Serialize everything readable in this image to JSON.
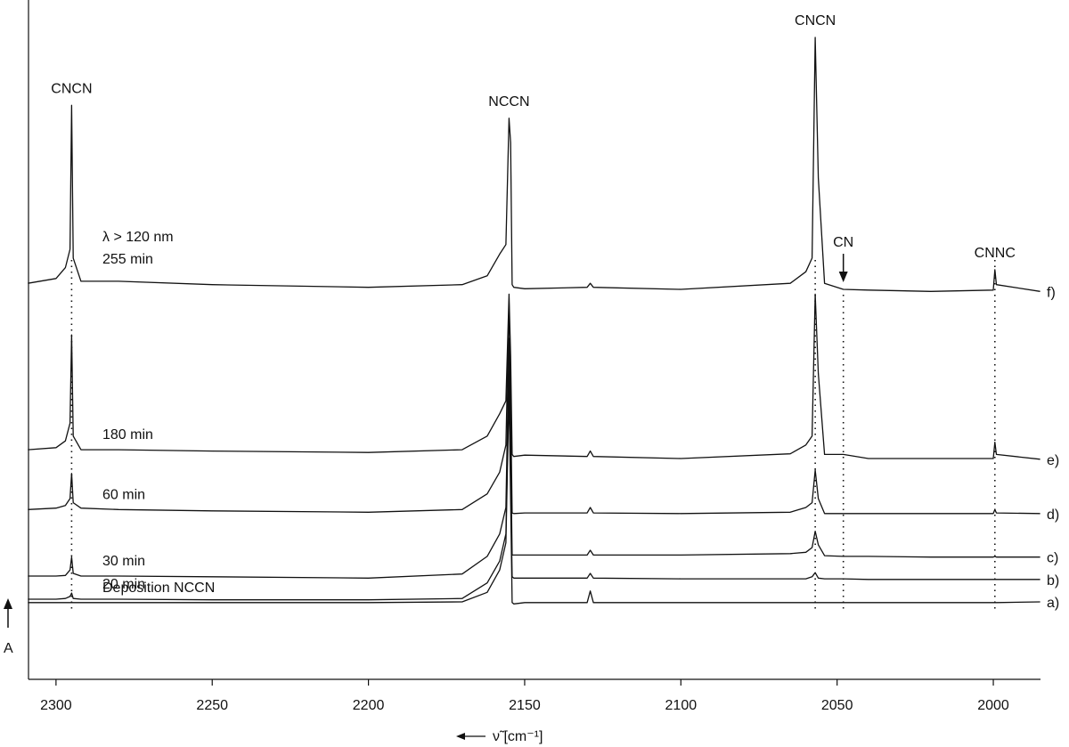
{
  "chart_data": {
    "type": "line",
    "x_label": "ν̃ [cm⁻¹]",
    "y_label": "A",
    "xlim": [
      2308.8,
      1984.9
    ],
    "xticks": [
      2300,
      2250,
      2200,
      2150,
      2100,
      2050,
      2000
    ],
    "ylim": [
      0,
      100
    ],
    "color": "#111111",
    "x": [
      2309,
      2300,
      2297,
      2295.5,
      2295,
      2294.5,
      2292,
      2280,
      2250,
      2200,
      2170,
      2162,
      2158,
      2156,
      2155,
      2154.5,
      2154,
      2153.5,
      2150,
      2130,
      2129,
      2128,
      2100,
      2065,
      2060,
      2058,
      2057,
      2056,
      2054,
      2048,
      2040,
      2020,
      2000,
      1999.5,
      1999,
      1985
    ],
    "series": [
      {
        "name": "a)",
        "labels": [
          "Deposition NCCN"
        ],
        "values": [
          11.3,
          11.3,
          11.3,
          11.3,
          11.3,
          11.3,
          11.3,
          11.3,
          11.3,
          11.3,
          11.4,
          12.8,
          16.1,
          20.1,
          42.5,
          26.6,
          11.3,
          11.1,
          11.3,
          11.3,
          13.0,
          11.3,
          11.3,
          11.3,
          11.3,
          11.3,
          11.3,
          11.3,
          11.3,
          11.3,
          11.3,
          11.3,
          11.3,
          11.3,
          11.3,
          11.4
        ]
      },
      {
        "name": "b)",
        "labels": [
          "20 min"
        ],
        "values": [
          11.8,
          11.8,
          11.9,
          12.2,
          12.7,
          11.9,
          11.8,
          11.8,
          11.7,
          11.7,
          11.9,
          14.2,
          17.4,
          21.4,
          45.0,
          29.2,
          15.1,
          14.9,
          14.9,
          14.9,
          15.6,
          14.9,
          14.8,
          14.8,
          14.8,
          15.1,
          15.7,
          14.9,
          14.8,
          14.8,
          14.7,
          14.7,
          14.7,
          14.7,
          14.7,
          14.7
        ]
      },
      {
        "name": "c)",
        "labels": [
          "30 min"
        ],
        "values": [
          15.2,
          15.2,
          15.3,
          16.1,
          18.0,
          15.6,
          15.2,
          15.2,
          15.1,
          14.9,
          15.5,
          18.1,
          21.4,
          25.3,
          50.2,
          34.5,
          18.3,
          18.3,
          18.3,
          18.3,
          19.0,
          18.3,
          18.3,
          18.5,
          18.7,
          19.4,
          21.8,
          19.8,
          18.2,
          18.1,
          18.1,
          18.0,
          18.0,
          18.1,
          18.0,
          18.0
        ]
      },
      {
        "name": "d)",
        "labels": [
          "60 min"
        ],
        "values": [
          25.0,
          25.2,
          25.6,
          26.6,
          30.3,
          26.0,
          25.2,
          25.0,
          24.8,
          24.6,
          25.0,
          27.3,
          30.5,
          34.5,
          55.4,
          41.0,
          24.5,
          24.4,
          24.5,
          24.5,
          25.3,
          24.5,
          24.4,
          24.6,
          25.3,
          26.0,
          30.8,
          26.6,
          24.4,
          24.4,
          24.4,
          24.4,
          24.4,
          25.0,
          24.5,
          24.4
        ]
      },
      {
        "name": "e)",
        "labels": [
          "180 min"
        ],
        "values": [
          33.8,
          34.1,
          35.1,
          37.7,
          50.7,
          35.8,
          33.8,
          33.8,
          33.6,
          33.4,
          33.8,
          35.8,
          39.1,
          41.0,
          56.7,
          47.6,
          33.1,
          32.8,
          33.0,
          32.8,
          33.6,
          32.8,
          32.5,
          33.2,
          34.5,
          35.8,
          56.7,
          45.0,
          33.1,
          33.1,
          32.5,
          32.5,
          32.5,
          34.9,
          33.1,
          32.4
        ]
      },
      {
        "name": "f)",
        "labels": [
          "λ > 120 nm",
          "255 min"
        ],
        "values": [
          58.3,
          59.0,
          60.6,
          63.3,
          84.5,
          62.0,
          58.6,
          58.6,
          58.1,
          57.7,
          58.1,
          59.4,
          62.6,
          64.0,
          82.6,
          79.0,
          58.1,
          57.7,
          57.5,
          57.7,
          58.3,
          57.7,
          57.4,
          58.3,
          60.0,
          62.0,
          94.5,
          73.8,
          58.3,
          57.4,
          57.3,
          57.1,
          57.3,
          60.3,
          58.1,
          57.1
        ]
      }
    ],
    "peak_labels": [
      {
        "text": "CNCN",
        "x": 2295,
        "dotted": true,
        "arrow": false
      },
      {
        "text": "NCCN",
        "x": 2155,
        "dotted": false,
        "arrow": false
      },
      {
        "text": "CNCN",
        "x": 2057,
        "dotted": true,
        "arrow": false
      },
      {
        "text": "CN",
        "x": 2048,
        "dotted": true,
        "arrow": true
      },
      {
        "text": "CNNC",
        "x": 1999.5,
        "dotted": true,
        "arrow": false
      }
    ]
  }
}
